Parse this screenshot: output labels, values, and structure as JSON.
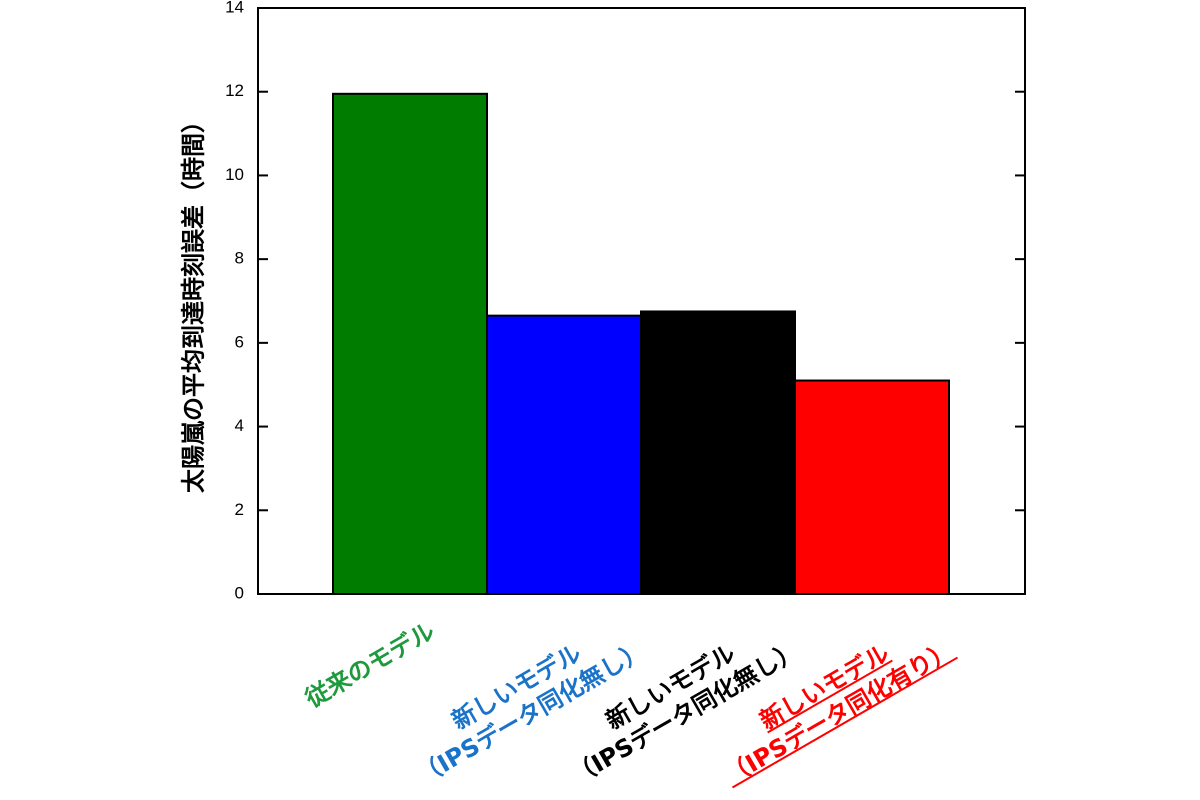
{
  "chart_data": {
    "type": "bar",
    "y_label": "太陽嵐の平均到達時刻誤差（時間）",
    "categories": [
      "従来のモデル",
      "新しいモデル\n（IPSデータ同化無し）",
      "新しいモデル\n（IPSデータ同化無し）",
      "新しいモデル\n（IPSデータ同化有り）"
    ],
    "values": [
      11.95,
      6.65,
      6.75,
      5.1
    ],
    "colors": [
      "#007d00",
      "#0000ff",
      "#000000",
      "#ff0000"
    ],
    "category_colors": [
      "#1e9a3c",
      "#1a73c8",
      "#000000",
      "#ff0000"
    ],
    "ylim": [
      0,
      14
    ],
    "yticks": [
      0,
      2,
      4,
      6,
      8,
      10,
      12,
      14
    ]
  }
}
